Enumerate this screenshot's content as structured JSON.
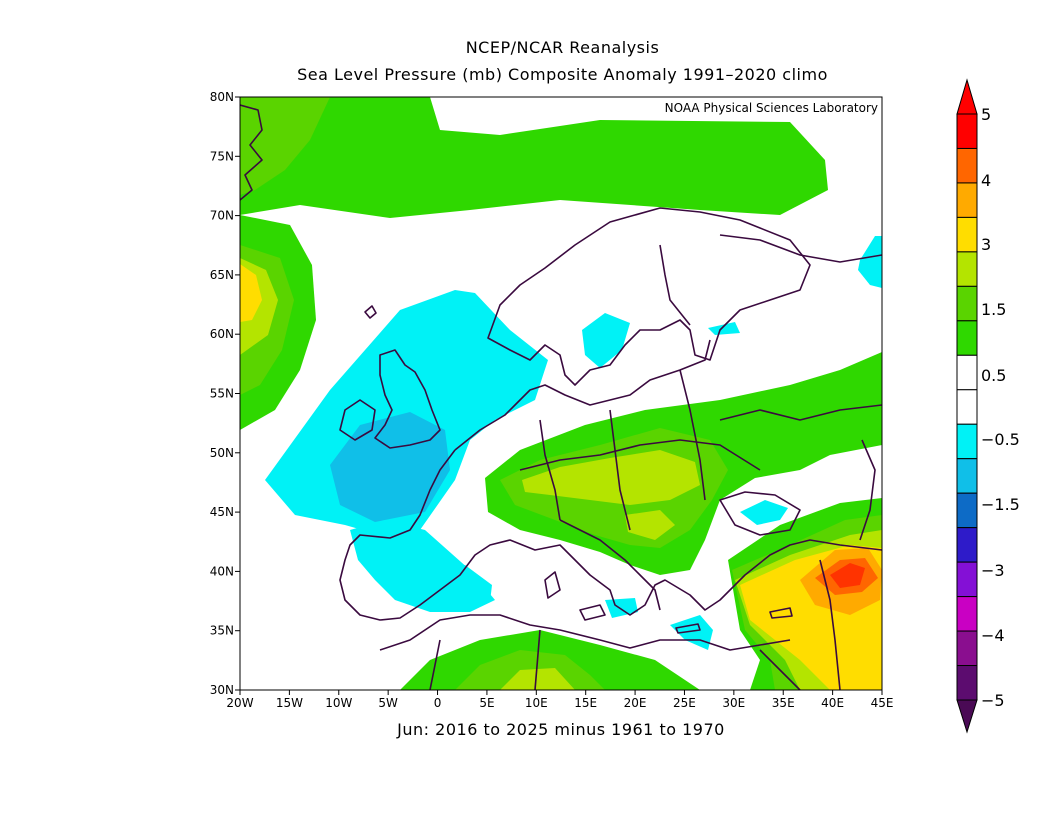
{
  "title_line1": "NCEP/NCAR Reanalysis",
  "title_line2": "Sea Level Pressure (mb) Composite Anomaly 1991–2020 climo",
  "credit": "NOAA Physical Sciences Laboratory",
  "footer": "Jun: 2016 to 2025 minus 1961 to 1970",
  "lat_ticks": [
    "80N",
    "75N",
    "70N",
    "65N",
    "60N",
    "55N",
    "50N",
    "45N",
    "40N",
    "35N",
    "30N"
  ],
  "lon_ticks": [
    "20W",
    "15W",
    "10W",
    "5W",
    "0",
    "5E",
    "10E",
    "15E",
    "20E",
    "25E",
    "30E",
    "35E",
    "40E",
    "45E"
  ],
  "colorbar": {
    "labels": [
      "5",
      "4",
      "3",
      "1.5",
      "0.5",
      "−0.5",
      "−1.5",
      "−3",
      "−4",
      "−5"
    ],
    "colors": [
      "#ff0000",
      "#ff6600",
      "#ffaa00",
      "#ffdd00",
      "#b4e400",
      "#5ad400",
      "#2fd800",
      "#ffffff",
      "#ffffff",
      "#00f2f6",
      "#10bfe8",
      "#0d6bc6",
      "#2e1bc9",
      "#8410d6",
      "#c900c3",
      "#8a0e8f",
      "#5c0c6f"
    ],
    "arrow_top_color": "#ff0000",
    "arrow_bottom_color": "#4a0a55"
  },
  "map": {
    "region": "Europe and North Africa",
    "lon_range": [
      -20,
      45
    ],
    "lat_range": [
      30,
      80
    ],
    "variable": "Sea Level Pressure anomaly (mb)"
  }
}
